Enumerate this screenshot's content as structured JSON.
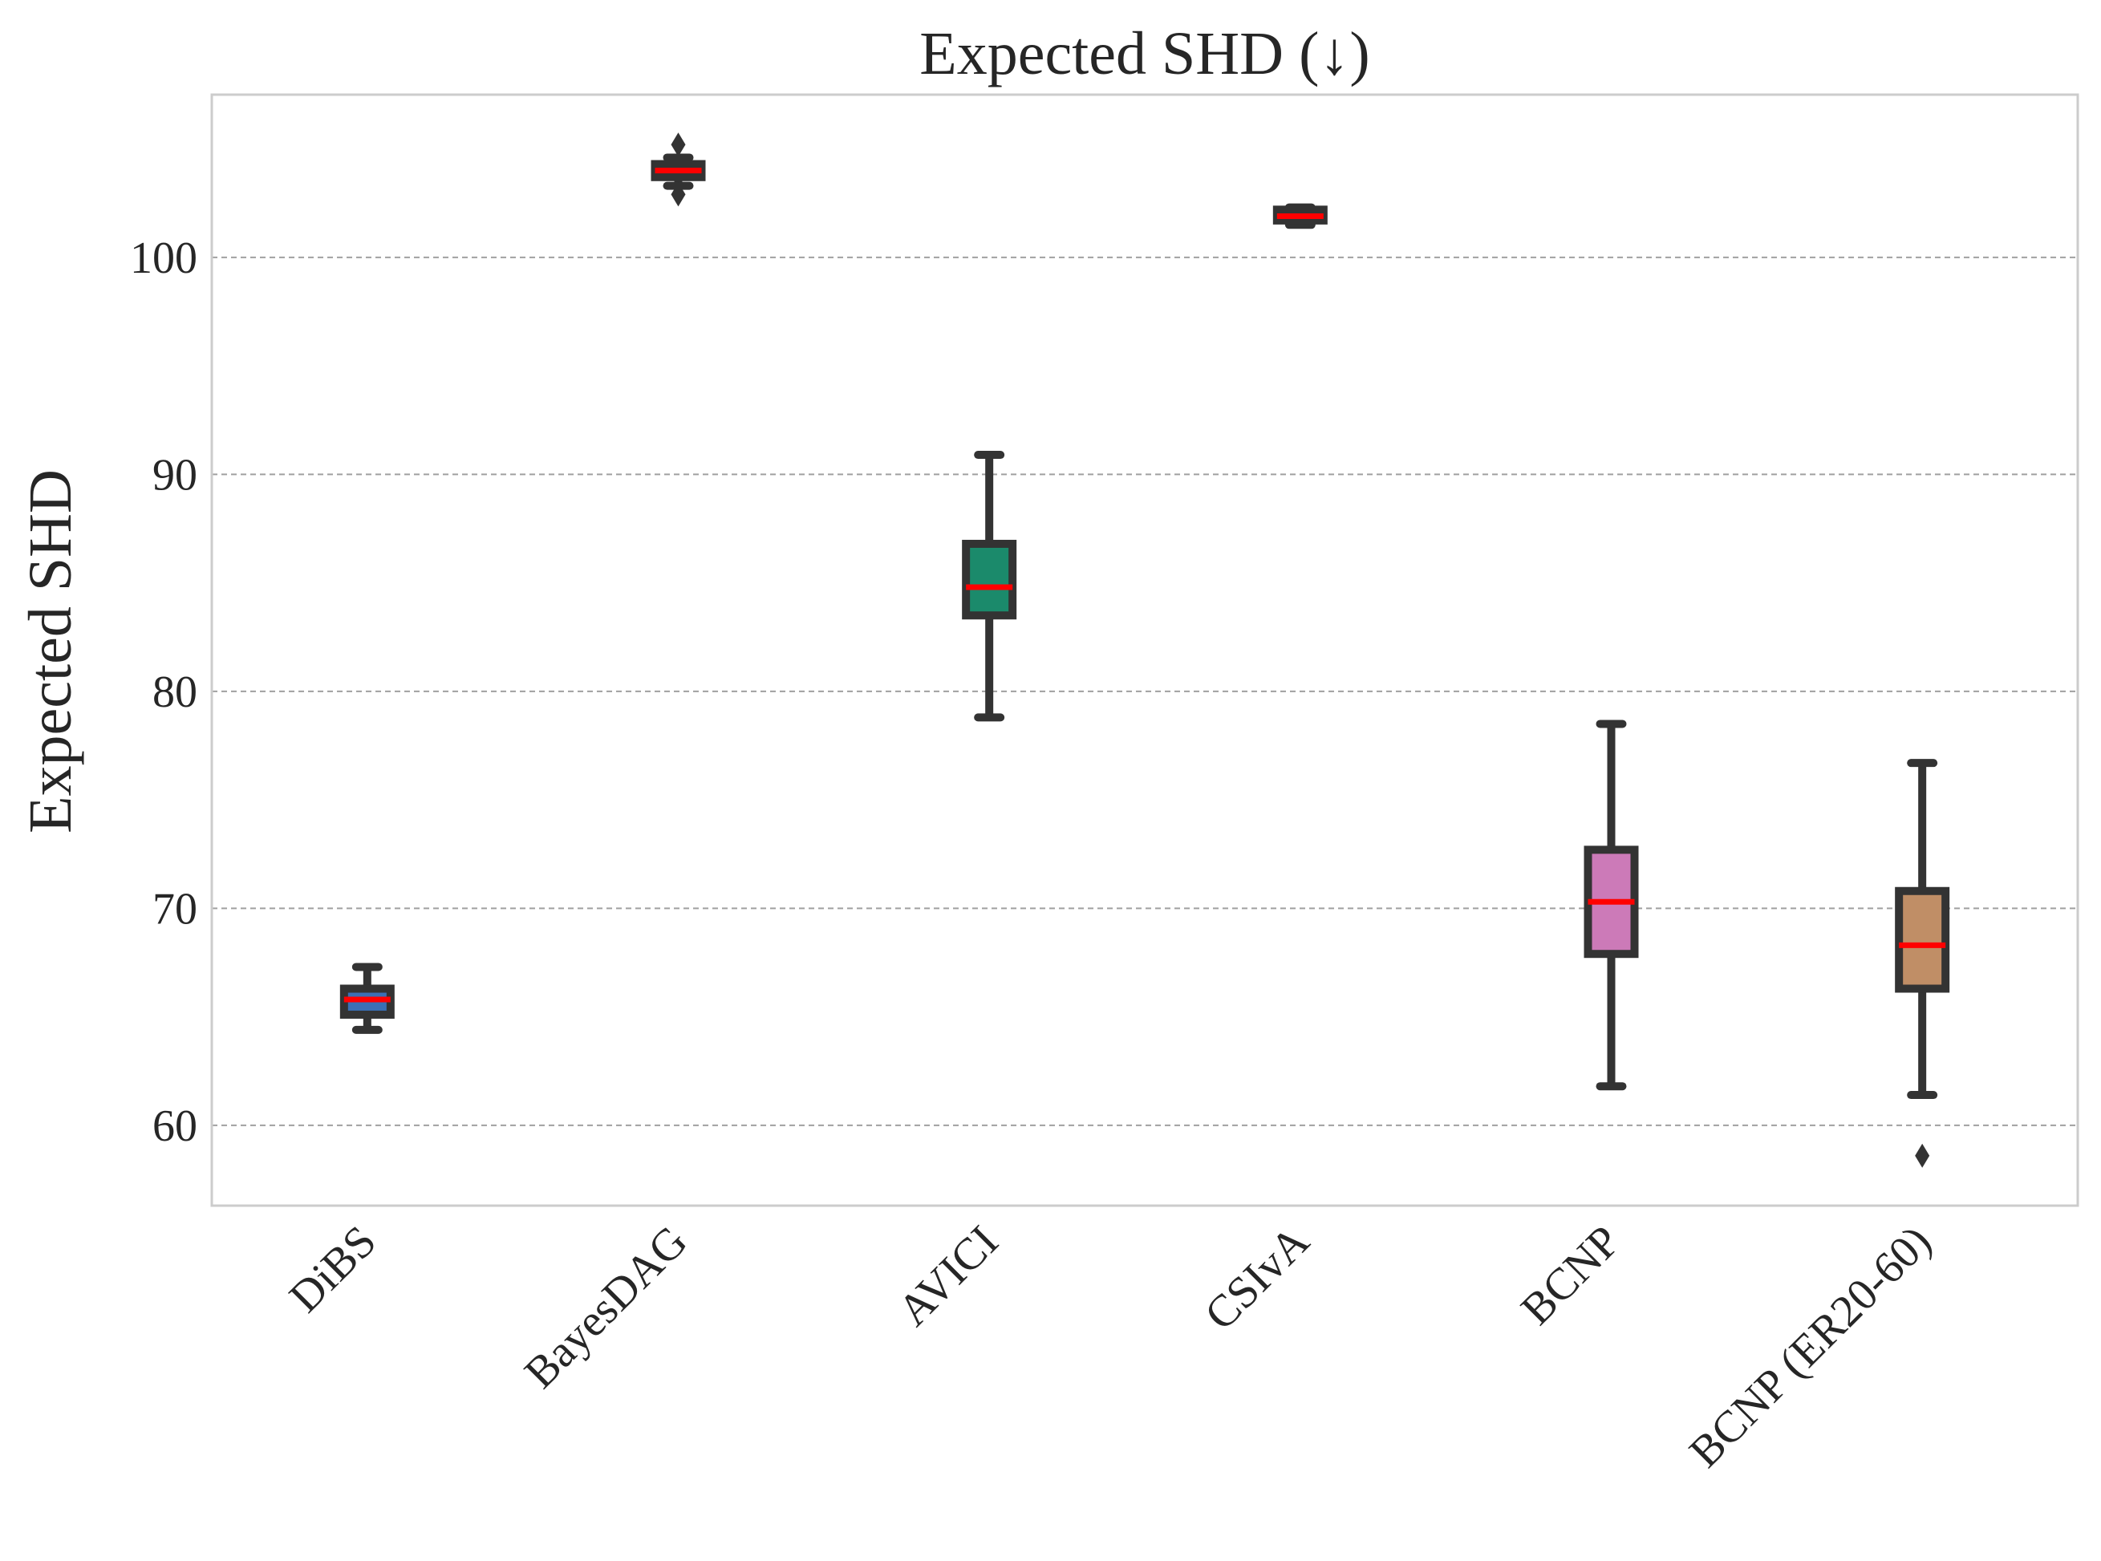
{
  "chart_data": {
    "type": "box",
    "title": "Expected SHD (↓)",
    "xlabel": "",
    "ylabel": "Expected SHD",
    "ylim": [
      56.3,
      107.5
    ],
    "yticks": [
      60,
      70,
      80,
      90,
      100
    ],
    "grid": "horizontal dashed",
    "median_color": "#ff0000",
    "categories": [
      "DiBS",
      "BayesDAG",
      "AVICI",
      "CSIvA",
      "BCNP",
      "BCNP (ER20-60)"
    ],
    "boxes": [
      {
        "name": "DiBS",
        "color": "#3a6fb5",
        "whisker_low": 64.4,
        "q1": 65.1,
        "median": 65.8,
        "q3": 66.3,
        "whisker_high": 67.3,
        "fliers": []
      },
      {
        "name": "BayesDAG",
        "color": "#d96020",
        "whisker_low": 103.3,
        "q1": 103.7,
        "median": 104.0,
        "q3": 104.3,
        "whisker_high": 104.6,
        "fliers": [
          102.9,
          105.2
        ]
      },
      {
        "name": "AVICI",
        "color": "#1b8a6b",
        "whisker_low": 78.8,
        "q1": 83.5,
        "median": 84.8,
        "q3": 86.8,
        "whisker_high": 90.9,
        "fliers": []
      },
      {
        "name": "CSIvA",
        "color": "#7a3fb0",
        "whisker_low": 101.5,
        "q1": 101.7,
        "median": 101.9,
        "q3": 102.2,
        "whisker_high": 102.3,
        "fliers": []
      },
      {
        "name": "BCNP",
        "color": "#cc7ab8",
        "whisker_low": 61.8,
        "q1": 67.9,
        "median": 70.3,
        "q3": 72.7,
        "whisker_high": 78.5,
        "fliers": []
      },
      {
        "name": "BCNP (ER20-60)",
        "color": "#c08e66",
        "whisker_low": 61.4,
        "q1": 66.3,
        "median": 68.3,
        "q3": 70.8,
        "whisker_high": 76.7,
        "fliers": [
          58.6
        ]
      }
    ]
  }
}
